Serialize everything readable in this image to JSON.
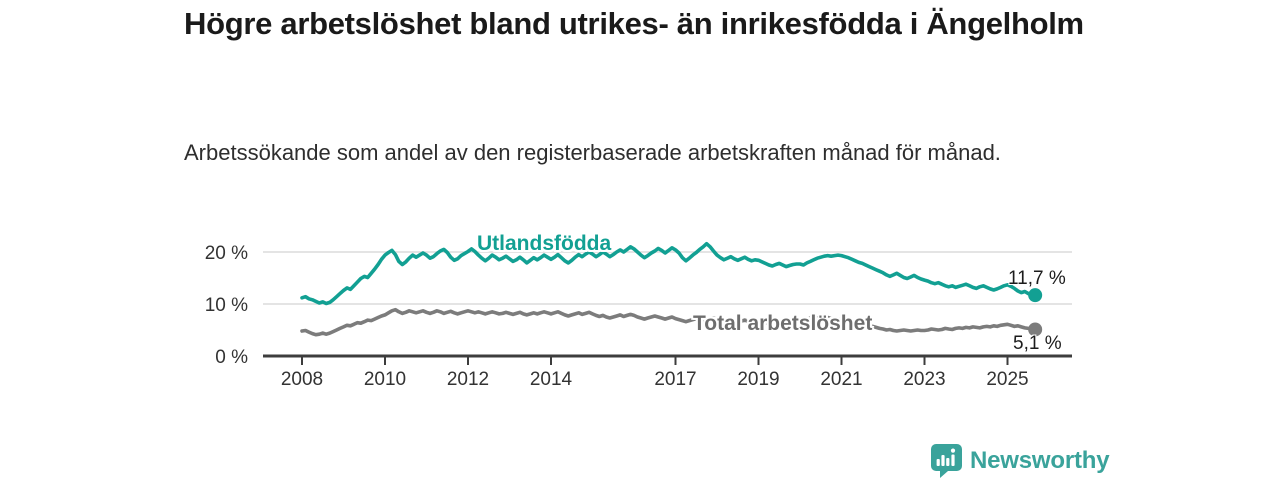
{
  "chart_data": {
    "type": "line",
    "title": "Högre arbetslöshet bland utrikes- än inrikesfödda i Ängelholm",
    "subtitle": "Arbetssökande som andel av den registerbaserade arbetskraften månad för månad.",
    "x_unit": "monthly",
    "x_start": "2008-01",
    "x_end": "2025-09",
    "points_per_year": 12,
    "xticks": [
      2008,
      2010,
      2012,
      2014,
      2017,
      2019,
      2021,
      2023,
      2025
    ],
    "yticks": [
      {
        "value": 0,
        "label": "0 %"
      },
      {
        "value": 10,
        "label": "10 %"
      },
      {
        "value": 20,
        "label": "20 %"
      }
    ],
    "ylim": [
      0,
      22.5
    ],
    "grid": "horizontal",
    "legend_position": "inline-labels-on-lines",
    "axis_color": "#3d3d3d",
    "grid_color": "#dcdcdc",
    "series": [
      {
        "name": "Utlandsfödda",
        "color": "#12a093",
        "end_label": "11,7 %",
        "end_value": 11.7,
        "values": [
          11.2,
          11.4,
          11.0,
          10.8,
          10.5,
          10.2,
          10.4,
          10.1,
          10.3,
          10.8,
          11.4,
          12.0,
          12.6,
          13.1,
          12.8,
          13.5,
          14.2,
          14.9,
          15.3,
          15.1,
          15.9,
          16.7,
          17.6,
          18.6,
          19.4,
          19.9,
          20.3,
          19.5,
          18.2,
          17.6,
          18.1,
          18.8,
          19.4,
          19.0,
          19.4,
          19.8,
          19.4,
          18.8,
          19.1,
          19.7,
          20.2,
          20.5,
          19.9,
          19.0,
          18.4,
          18.7,
          19.3,
          19.7,
          20.1,
          20.6,
          20.1,
          19.4,
          18.8,
          18.3,
          18.8,
          19.4,
          19.0,
          18.5,
          18.8,
          19.2,
          18.7,
          18.2,
          18.5,
          19.0,
          18.5,
          17.9,
          18.4,
          18.9,
          18.5,
          18.9,
          19.4,
          19.0,
          18.6,
          19.0,
          19.5,
          18.9,
          18.3,
          17.9,
          18.4,
          19.0,
          19.5,
          19.1,
          19.6,
          20.0,
          19.6,
          19.1,
          19.5,
          20.0,
          19.6,
          19.1,
          19.5,
          20.0,
          20.4,
          20.0,
          20.5,
          21.0,
          20.6,
          20.0,
          19.4,
          18.9,
          19.3,
          19.8,
          20.2,
          20.7,
          20.3,
          19.8,
          20.3,
          20.8,
          20.4,
          19.8,
          18.9,
          18.3,
          18.8,
          19.4,
          19.9,
          20.5,
          21.0,
          21.6,
          21.0,
          20.2,
          19.4,
          18.9,
          18.5,
          18.8,
          19.1,
          18.7,
          18.4,
          18.7,
          19.0,
          18.6,
          18.3,
          18.5,
          18.4,
          18.1,
          17.8,
          17.5,
          17.3,
          17.6,
          17.8,
          17.5,
          17.2,
          17.4,
          17.6,
          17.7,
          17.7,
          17.5,
          17.9,
          18.2,
          18.5,
          18.8,
          19.0,
          19.2,
          19.3,
          19.2,
          19.3,
          19.4,
          19.3,
          19.1,
          18.9,
          18.6,
          18.3,
          18.0,
          17.8,
          17.5,
          17.2,
          16.9,
          16.6,
          16.3,
          16.0,
          15.6,
          15.3,
          15.6,
          15.9,
          15.5,
          15.1,
          14.9,
          15.2,
          15.5,
          15.1,
          14.8,
          14.6,
          14.4,
          14.1,
          13.9,
          14.1,
          13.8,
          13.5,
          13.3,
          13.5,
          13.2,
          13.4,
          13.6,
          13.8,
          13.5,
          13.2,
          13.0,
          13.3,
          13.5,
          13.2,
          12.9,
          12.7,
          12.9,
          13.2,
          13.5,
          13.7,
          13.4,
          13.0,
          12.5,
          12.2,
          12.4,
          12.0,
          11.8,
          11.7
        ]
      },
      {
        "name": "Total arbetslöshet",
        "color": "#7c7c7c",
        "end_label": "5,1 %",
        "end_value": 5.1,
        "values": [
          4.8,
          4.9,
          4.6,
          4.3,
          4.1,
          4.2,
          4.4,
          4.2,
          4.4,
          4.7,
          5.0,
          5.3,
          5.6,
          5.9,
          5.8,
          6.1,
          6.4,
          6.3,
          6.6,
          6.9,
          6.8,
          7.1,
          7.4,
          7.7,
          7.9,
          8.3,
          8.7,
          8.9,
          8.5,
          8.2,
          8.4,
          8.7,
          8.5,
          8.3,
          8.5,
          8.7,
          8.4,
          8.2,
          8.4,
          8.7,
          8.5,
          8.2,
          8.4,
          8.6,
          8.3,
          8.1,
          8.3,
          8.5,
          8.7,
          8.5,
          8.3,
          8.5,
          8.3,
          8.1,
          8.3,
          8.5,
          8.3,
          8.1,
          8.2,
          8.4,
          8.2,
          8.0,
          8.2,
          8.4,
          8.1,
          7.9,
          8.1,
          8.3,
          8.1,
          8.3,
          8.5,
          8.3,
          8.1,
          8.3,
          8.5,
          8.2,
          7.9,
          7.7,
          7.9,
          8.1,
          8.3,
          8.0,
          8.2,
          8.4,
          8.1,
          7.8,
          7.6,
          7.8,
          7.5,
          7.3,
          7.5,
          7.7,
          7.9,
          7.6,
          7.8,
          8.0,
          7.8,
          7.5,
          7.3,
          7.1,
          7.3,
          7.5,
          7.7,
          7.5,
          7.3,
          7.1,
          7.3,
          7.5,
          7.2,
          7.0,
          6.8,
          6.6,
          6.8,
          7.0,
          7.2,
          7.0,
          6.8,
          6.9,
          7.1,
          7.3,
          7.1,
          6.9,
          6.7,
          6.8,
          7.0,
          6.8,
          6.6,
          6.7,
          6.9,
          6.7,
          6.5,
          6.6,
          6.8,
          6.6,
          6.4,
          6.5,
          6.7,
          6.5,
          6.3,
          6.4,
          6.2,
          6.3,
          6.5,
          6.7,
          6.9,
          6.7,
          7.0,
          7.3,
          7.5,
          7.3,
          7.1,
          7.2,
          7.4,
          7.2,
          7.0,
          7.1,
          7.2,
          7.0,
          6.8,
          6.6,
          6.4,
          6.2,
          6.0,
          5.8,
          5.6,
          5.7,
          5.5,
          5.3,
          5.2,
          5.0,
          5.1,
          4.9,
          4.8,
          4.9,
          5.0,
          4.9,
          4.8,
          4.9,
          5.0,
          4.9,
          4.9,
          5.0,
          5.2,
          5.1,
          5.0,
          5.1,
          5.3,
          5.2,
          5.1,
          5.3,
          5.4,
          5.3,
          5.5,
          5.4,
          5.6,
          5.5,
          5.4,
          5.6,
          5.7,
          5.6,
          5.8,
          5.7,
          5.9,
          6.0,
          6.1,
          5.9,
          5.7,
          5.8,
          5.6,
          5.4,
          5.3,
          5.2,
          5.1
        ]
      }
    ]
  },
  "branding": {
    "name": "Newsworthy",
    "icon": "newsworthy-logo-icon",
    "color": "#3aa39b"
  }
}
